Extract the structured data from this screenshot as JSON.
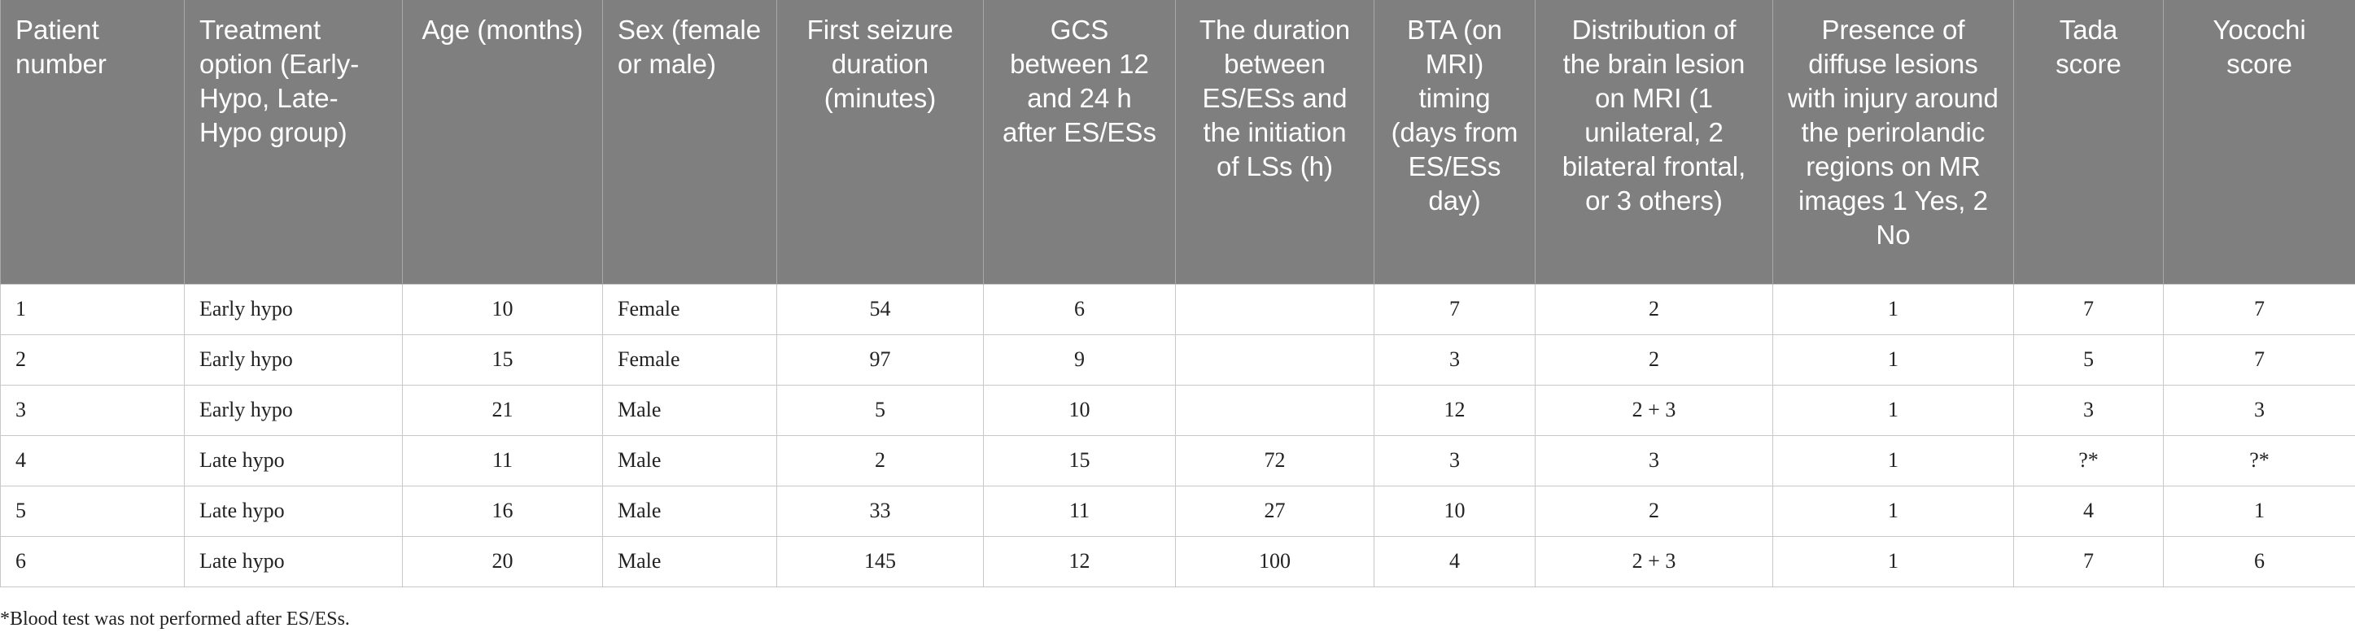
{
  "table": {
    "headers": [
      "Patient number",
      "Treatment option (Early-Hypo, Late-Hypo group)",
      "Age (months)",
      "Sex (female or male)",
      "First seizure duration (minutes)",
      "GCS between 12 and 24 h after ES/ESs",
      "The duration between ES/ESs and the initiation of LSs (h)",
      "BTA (on MRI) timing (days from ES/ESs day)",
      "Distribution of the brain lesion on MRI (1 unilateral, 2 bilateral frontal, or 3 others)",
      "Presence of diffuse lesions with injury around the perirolandic regions on MR images 1 Yes, 2 No",
      "Tada score",
      "Yocochi score"
    ],
    "rows": [
      [
        "1",
        "Early hypo",
        "10",
        "Female",
        "54",
        "6",
        "",
        "7",
        "2",
        "1",
        "7",
        "7"
      ],
      [
        "2",
        "Early hypo",
        "15",
        "Female",
        "97",
        "9",
        "",
        "3",
        "2",
        "1",
        "5",
        "7"
      ],
      [
        "3",
        "Early hypo",
        "21",
        "Male",
        "5",
        "10",
        "",
        "12",
        "2 + 3",
        "1",
        "3",
        "3"
      ],
      [
        "4",
        "Late hypo",
        "11",
        "Male",
        "2",
        "15",
        "72",
        "3",
        "3",
        "1",
        "?*",
        "?*"
      ],
      [
        "5",
        "Late hypo",
        "16",
        "Male",
        "33",
        "11",
        "27",
        "10",
        "2",
        "1",
        "4",
        "1"
      ],
      [
        "6",
        "Late hypo",
        "20",
        "Male",
        "145",
        "12",
        "100",
        "4",
        "2 + 3",
        "1",
        "7",
        "6"
      ]
    ]
  },
  "footnote": "*Blood test was not performed after ES/ESs."
}
